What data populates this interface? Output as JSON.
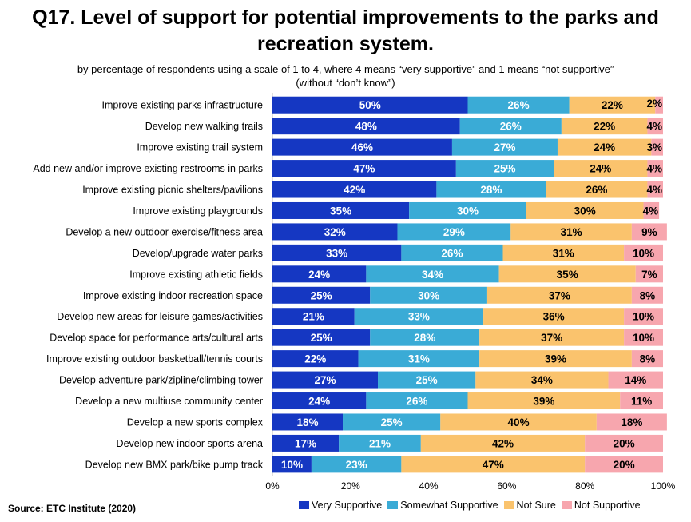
{
  "title_line1": "Q17. Level of support for potential improvements to the parks and",
  "title_line2": "recreation system.",
  "subtitle_line1": "by percentage of respondents using a scale of 1 to 4, where 4 means “very supportive” and 1 means “not supportive”",
  "subtitle_line2": "(without “don’t know”)",
  "source": "Source:  ETC Institute (2020)",
  "colors": {
    "very": "#1537C2",
    "somewhat": "#3AABD6",
    "notsure": "#FAC36D",
    "not": "#F7A6AE"
  },
  "chart_data": {
    "type": "bar",
    "orientation": "horizontal",
    "stacked": true,
    "xlim": [
      0,
      100
    ],
    "x_ticks": [
      "0%",
      "20%",
      "40%",
      "60%",
      "80%",
      "100%"
    ],
    "categories": [
      "Improve existing parks infrastructure",
      "Develop new walking trails",
      "Improve existing trail system",
      "Add new and/or improve existing restrooms in parks",
      "Improve existing picnic shelters/pavilions",
      "Improve existing playgrounds",
      "Develop a new outdoor exercise/fitness area",
      "Develop/upgrade water parks",
      "Improve existing athletic fields",
      "Improve existing indoor recreation space",
      "Develop new areas for leisure games/activities",
      "Develop space for performance arts/cultural arts",
      "Improve existing outdoor basketball/tennis courts",
      "Develop adventure park/zipline/climbing tower",
      "Develop a new multiuse community center",
      "Develop a new sports complex",
      "Develop new indoor sports arena",
      "Develop new BMX park/bike pump track"
    ],
    "series": [
      {
        "name": "Very Supportive",
        "values": [
          50,
          48,
          46,
          47,
          42,
          35,
          32,
          33,
          24,
          25,
          21,
          25,
          22,
          27,
          24,
          18,
          17,
          10
        ]
      },
      {
        "name": "Somewhat Supportive",
        "values": [
          26,
          26,
          27,
          25,
          28,
          30,
          29,
          26,
          34,
          30,
          33,
          28,
          31,
          25,
          26,
          25,
          21,
          23
        ]
      },
      {
        "name": "Not Sure",
        "values": [
          22,
          22,
          24,
          24,
          26,
          30,
          31,
          31,
          35,
          37,
          36,
          37,
          39,
          34,
          39,
          40,
          42,
          47
        ]
      },
      {
        "name": "Not Supportive",
        "values": [
          2,
          4,
          3,
          4,
          4,
          4,
          9,
          10,
          7,
          8,
          10,
          10,
          8,
          14,
          11,
          18,
          20,
          20
        ]
      }
    ]
  }
}
